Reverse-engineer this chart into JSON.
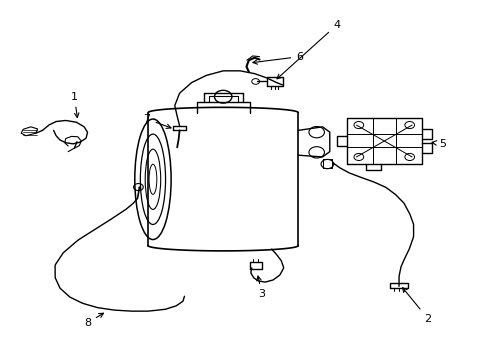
{
  "background_color": "#ffffff",
  "line_color": "#000000",
  "line_width": 1.0,
  "label_fontsize": 8,
  "figsize": [
    4.9,
    3.6
  ],
  "dpi": 100,
  "label_positions": {
    "1": {
      "text": [
        0.148,
        0.735
      ],
      "arrow_to": [
        0.173,
        0.71
      ]
    },
    "2": {
      "text": [
        0.88,
        0.105
      ],
      "arrow_to": [
        0.858,
        0.125
      ]
    },
    "3": {
      "text": [
        0.535,
        0.175
      ],
      "arrow_to": [
        0.545,
        0.2
      ]
    },
    "4": {
      "text": [
        0.69,
        0.935
      ],
      "arrow_to": [
        0.655,
        0.915
      ]
    },
    "5": {
      "text": [
        0.905,
        0.6
      ],
      "arrow_to": [
        0.875,
        0.605
      ]
    },
    "6": {
      "text": [
        0.615,
        0.845
      ],
      "arrow_to": [
        0.597,
        0.828
      ]
    },
    "7": {
      "text": [
        0.3,
        0.67
      ],
      "arrow_to": [
        0.325,
        0.655
      ]
    },
    "8": {
      "text": [
        0.175,
        0.095
      ],
      "arrow_to": [
        0.2,
        0.115
      ]
    }
  }
}
